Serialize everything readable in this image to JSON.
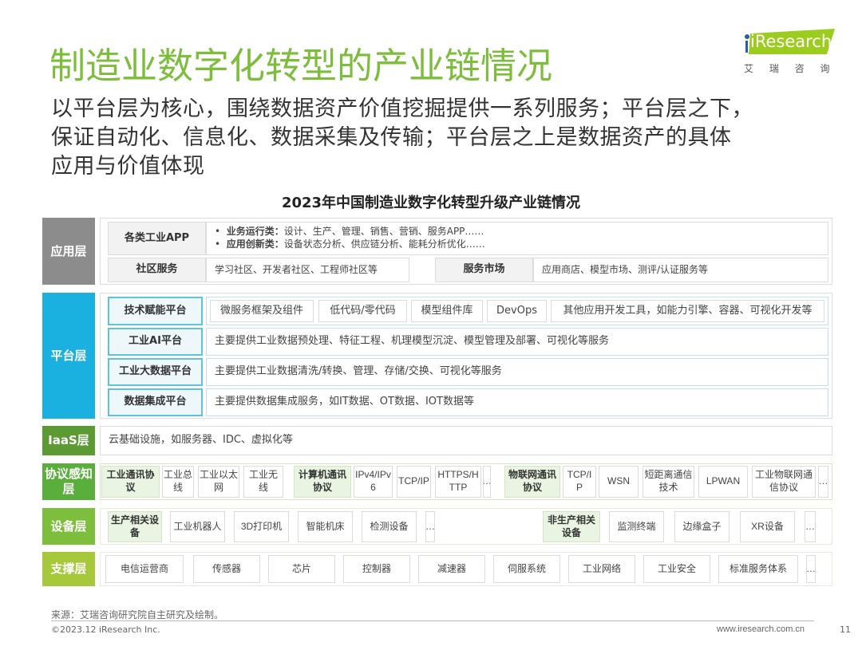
{
  "header": {
    "title": "制造业数字化转型的产业链情况",
    "subtitle_lines": [
      "以平台层为核心，围绕数据资产价值挖掘提供一系列服务；平台层之下，",
      "保证自动化、信息化、数据采集及传输；平台层之上是数据资产的具体",
      "应用与价值体现"
    ]
  },
  "logo": {
    "brand": "iResearch",
    "cn": "艾 瑞 咨 询",
    "color": "#9ccc1e"
  },
  "chart_title": "2023年中国制造业数字化转型升级产业链情况",
  "colors": {
    "title": "#7dbd3c",
    "app": "#8c8c8c",
    "platform": "#1ab0e0",
    "iaas": "#5c9a34",
    "protocol": "#5aae3c",
    "device": "#7dbf3c",
    "support": "#a6c83a"
  },
  "layers": {
    "app": {
      "label": "应用层",
      "apps_name": "各类工业APP",
      "bullet1_head": "业务运行类：",
      "bullet1": "设计、生产、管理、销售、营销、服务APP……",
      "bullet2_head": "应用创新类：",
      "bullet2": "设备状态分析、供应链分析、能耗分析优化……",
      "community_name": "社区服务",
      "community": "学习社区、开发者社区、工程师社区等",
      "market_name": "服务市场",
      "market": "应用商店、模型市场、测评/认证服务等"
    },
    "platform": {
      "label": "平台层",
      "rows": [
        {
          "name": "技术赋能平台",
          "items": [
            "微服务框架及组件",
            "低代码/零代码",
            "模型组件库",
            "DevOps",
            "其他应用开发工具，如能力引擎、容器、可视化开发等"
          ]
        },
        {
          "name": "工业AI平台",
          "desc": "主要提供工业数据预处理、特征工程、机理模型沉淀、模型管理及部署、可视化等服务"
        },
        {
          "name": "工业大数据平台",
          "desc": "主要提供工业数据清洗/转换、管理、存储/交换、可视化等服务"
        },
        {
          "name": "数据集成平台",
          "desc": "主要提供数据集成服务，如IT数据、OT数据、IOT数据等"
        }
      ]
    },
    "iaas": {
      "label": "IaaS层",
      "desc": "云基础设施，如服务器、IDC、虚拟化等"
    },
    "protocol": {
      "label": "协议感知层",
      "groups": [
        {
          "name": "工业通讯协议",
          "items": [
            "工业总线",
            "工业以太网",
            "工业无线"
          ]
        },
        {
          "name": "计算机通讯协议",
          "items": [
            "IPv4/IPv6",
            "TCP/IP",
            "HTTPS/HTTP",
            "…"
          ]
        },
        {
          "name": "物联网通讯协议",
          "items": [
            "TCP/IP",
            "WSN",
            "短距离通信技术",
            "LPWAN",
            "工业物联网通信协议",
            "…"
          ]
        }
      ]
    },
    "device": {
      "label": "设备层",
      "groups": [
        {
          "name": "生产相关设备",
          "items": [
            "工业机器人",
            "3D打印机",
            "智能机床",
            "检测设备",
            "…"
          ]
        },
        {
          "name": "非生产相关设备",
          "items": [
            "监测终端",
            "边缘盒子",
            "XR设备",
            "…"
          ]
        }
      ]
    },
    "support": {
      "label": "支撑层",
      "items": [
        "电信运营商",
        "传感器",
        "芯片",
        "控制器",
        "减速器",
        "伺服系统",
        "工业网络",
        "工业安全",
        "标准服务体系",
        "…"
      ]
    }
  },
  "footer": {
    "source": "来源：艾瑞咨询研究院自主研究及绘制。",
    "copyright": "©2023.12 iResearch Inc.",
    "url": "www.iresearch.com.cn",
    "page": "11"
  }
}
